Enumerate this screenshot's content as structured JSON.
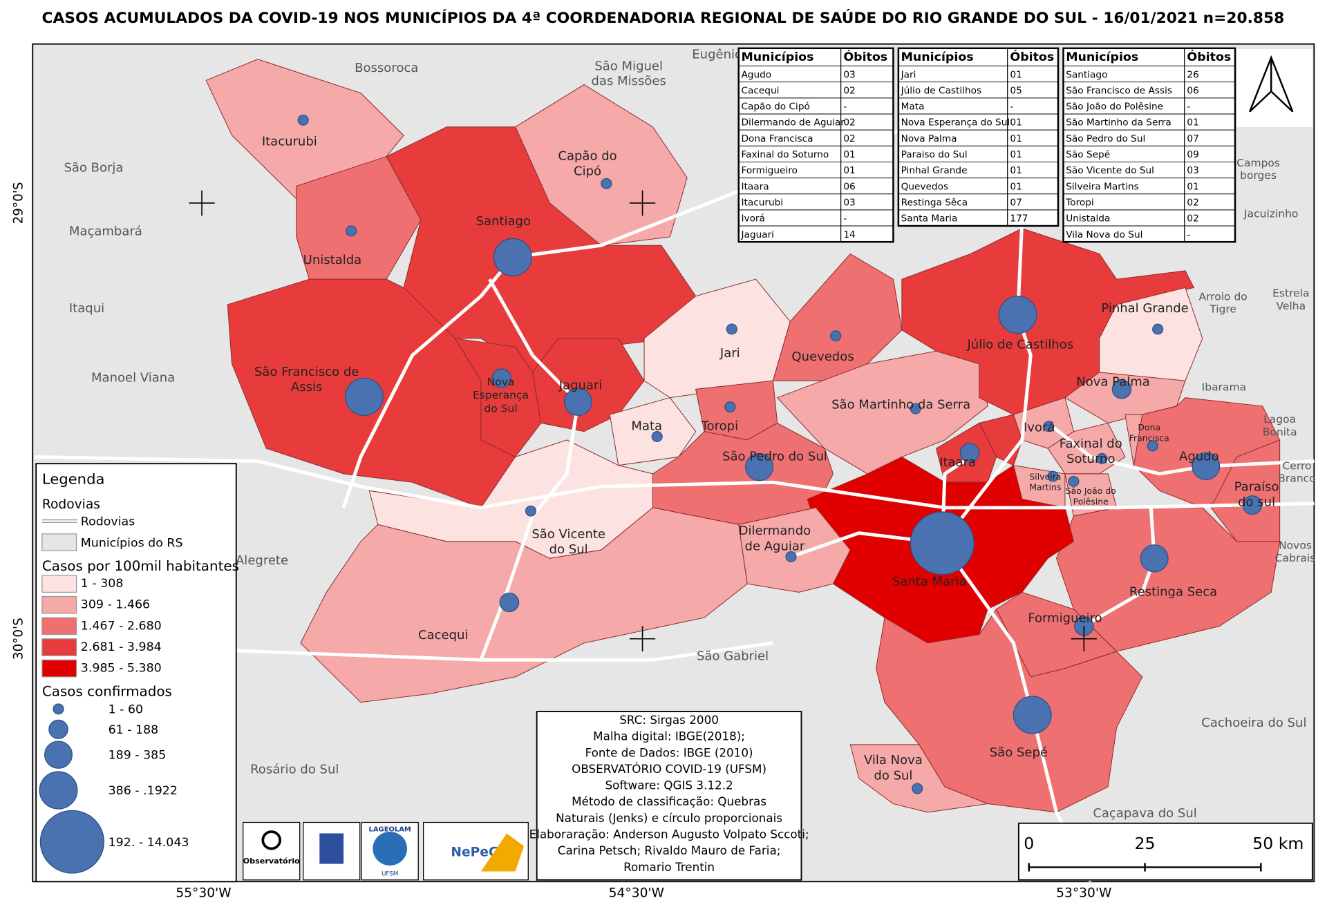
{
  "title": "CASOS ACUMULADOS DA COVID-19 NOS MUNICÍPIOS DA 4ª COORDENADORIA REGIONAL DE SAÚDE DO RIO GRANDE DO SUL - 16/01/2021 n=20.858",
  "tables": [
    {
      "header": [
        "Municípios",
        "Óbitos"
      ],
      "rows": [
        [
          "Agudo",
          "03"
        ],
        [
          "Cacequi",
          "02"
        ],
        [
          "Capão do Cipó",
          "-"
        ],
        [
          "Dilermando de Aguiar",
          "02"
        ],
        [
          "Dona Francisca",
          "02"
        ],
        [
          "Faxinal do Soturno",
          "01"
        ],
        [
          "Formigueiro",
          "01"
        ],
        [
          "Itaara",
          "06"
        ],
        [
          "Itacurubi",
          "03"
        ],
        [
          "Ivorá",
          "-"
        ],
        [
          "Jaguari",
          "14"
        ]
      ]
    },
    {
      "header": [
        "Municípios",
        "Óbitos"
      ],
      "rows": [
        [
          "Jari",
          "01"
        ],
        [
          "Júlio de Castilhos",
          "05"
        ],
        [
          "Mata",
          "-"
        ],
        [
          "Nova Esperança do Sul",
          "01"
        ],
        [
          "Nova Palma",
          "01"
        ],
        [
          "Paraiso do Sul",
          "01"
        ],
        [
          "Pinhal Grande",
          "01"
        ],
        [
          "Quevedos",
          "01"
        ],
        [
          "Restinga Sêca",
          "07"
        ],
        [
          "Santa Maria",
          "177"
        ]
      ]
    },
    {
      "header": [
        "Municípios",
        "Óbitos"
      ],
      "rows": [
        [
          "Santiago",
          "26"
        ],
        [
          "São Francisco de Assis",
          "06"
        ],
        [
          "São João do Polêsine",
          "-"
        ],
        [
          "São Martinho da Serra",
          "01"
        ],
        [
          "São Pedro do Sul",
          "07"
        ],
        [
          "São Sepé",
          "09"
        ],
        [
          "São Vicente do Sul",
          "03"
        ],
        [
          "Silveira Martins",
          "01"
        ],
        [
          "Toropi",
          "02"
        ],
        [
          "Unistalda",
          "02"
        ],
        [
          "Vila Nova do Sul",
          "-"
        ]
      ]
    }
  ],
  "map": {
    "municipalities": [
      {
        "lines": [
          "Itacurubi"
        ]
      },
      {
        "lines": [
          "Capão do",
          "Cipó"
        ]
      },
      {
        "lines": [
          "Santiago"
        ]
      },
      {
        "lines": [
          "Unistalda"
        ]
      },
      {
        "lines": [
          "São Francisco de",
          "Assis"
        ]
      },
      {
        "lines": [
          "Nova",
          "Esperança",
          "do Sul"
        ]
      },
      {
        "lines": [
          "Jaguari"
        ]
      },
      {
        "lines": [
          "Jari"
        ]
      },
      {
        "lines": [
          "Quevedos"
        ]
      },
      {
        "lines": [
          "Júlio de Castilhos"
        ]
      },
      {
        "lines": [
          "Pinhal Grande"
        ]
      },
      {
        "lines": [
          "Nova Palma"
        ]
      },
      {
        "lines": [
          "Mata"
        ]
      },
      {
        "lines": [
          "Toropi"
        ]
      },
      {
        "lines": [
          "São Pedro do Sul"
        ]
      },
      {
        "lines": [
          "São Martinho da Serra"
        ]
      },
      {
        "lines": [
          "Ivorá"
        ]
      },
      {
        "lines": [
          "Dona",
          "Francisca"
        ]
      },
      {
        "lines": [
          "Faxinal do",
          "Soturno"
        ]
      },
      {
        "lines": [
          "Itaara"
        ]
      },
      {
        "lines": [
          "Agudo"
        ]
      },
      {
        "lines": [
          "Silveira",
          "Martins"
        ]
      },
      {
        "lines": [
          "São João do",
          "Polêsine"
        ]
      },
      {
        "lines": [
          "Paraíso",
          "do sul"
        ]
      },
      {
        "lines": [
          "São Vicente",
          "do Sul"
        ]
      },
      {
        "lines": [
          "Dilermando",
          "de Aguiar"
        ]
      },
      {
        "lines": [
          "Santa Maria"
        ]
      },
      {
        "lines": [
          "Restinga Seca"
        ]
      },
      {
        "lines": [
          "Cacequi"
        ]
      },
      {
        "lines": [
          "Formigueiro"
        ]
      },
      {
        "lines": [
          "São Sepé"
        ]
      },
      {
        "lines": [
          "Vila Nova",
          "do Sul"
        ]
      }
    ],
    "neighbors": [
      {
        "lines": [
          "Bossoroca"
        ]
      },
      {
        "lines": [
          "São Miguel",
          "das Missões"
        ]
      },
      {
        "lines": [
          "Eugênio"
        ]
      },
      {
        "lines": [
          "São Borja"
        ]
      },
      {
        "lines": [
          "Maçambará"
        ]
      },
      {
        "lines": [
          "Itaqui"
        ]
      },
      {
        "lines": [
          "Manoel Viana"
        ]
      },
      {
        "lines": [
          "Alegrete"
        ]
      },
      {
        "lines": [
          "Rosário do Sul"
        ]
      },
      {
        "lines": [
          "São Gabriel"
        ]
      },
      {
        "lines": [
          "Cachoeira do Sul"
        ]
      },
      {
        "lines": [
          "Caçapava do Sul"
        ]
      },
      {
        "lines": [
          "Jacuizinho"
        ]
      },
      {
        "lines": [
          "Campos",
          "borges"
        ]
      },
      {
        "lines": [
          "Arroio do",
          "Tigre"
        ]
      },
      {
        "lines": [
          "Estrela",
          "Velha"
        ]
      },
      {
        "lines": [
          "Ibarama"
        ]
      },
      {
        "lines": [
          "Lagoa",
          "Bonita"
        ]
      },
      {
        "lines": [
          "Cerro",
          "Branco"
        ]
      },
      {
        "lines": [
          "Novos",
          "Cabrais"
        ]
      }
    ],
    "coordinates": {
      "lat": [
        "29°0'S",
        "30°0'S"
      ],
      "lon": [
        "55°30'W",
        "54°30'W",
        "53°30'W"
      ]
    }
  },
  "legend": {
    "title": "Legenda",
    "roads_heading": "Rodovias",
    "roads_item": "Rodovias",
    "municipalities_item": "Municípios do RS",
    "rate_heading": "Casos por 100mil habitantes",
    "rate_classes": [
      {
        "label": "1 - 308",
        "color": "#fde2e2"
      },
      {
        "label": "309 - 1.466",
        "color": "#f5a9a9"
      },
      {
        "label": "1.467 - 2.680",
        "color": "#ef7070"
      },
      {
        "label": "2.681 - 3.984",
        "color": "#e83c3c"
      },
      {
        "label": "3.985 - 5.380",
        "color": "#e10000"
      }
    ],
    "cases_heading": "Casos confirmados",
    "cases_classes": [
      "1 - 60",
      "61 - 188",
      "189 - 385",
      "386 - .1922",
      "192. - 14.043"
    ]
  },
  "credits": [
    "SRC: Sirgas 2000",
    "Malha digital: IBGE(2018);",
    "Fonte de Dados: IBGE (2010)",
    "OBSERVATÓRIO COVID-19 (UFSM)",
    "Software: QGIS 3.12.2",
    "Método de classificação: Quebras",
    "Naturais (Jenks) e círculo proporcionais",
    "Elaboraração: Anderson Augusto Volpato Sccoti;",
    "Carina Petsch; Rivaldo Mauro de Faria;",
    "Romario Trentin"
  ],
  "scale_bar": [
    "0",
    "25",
    "50 km"
  ],
  "logos": [
    "Observatório",
    "LAGEOLAM",
    "UFSM",
    "NePeGS"
  ]
}
